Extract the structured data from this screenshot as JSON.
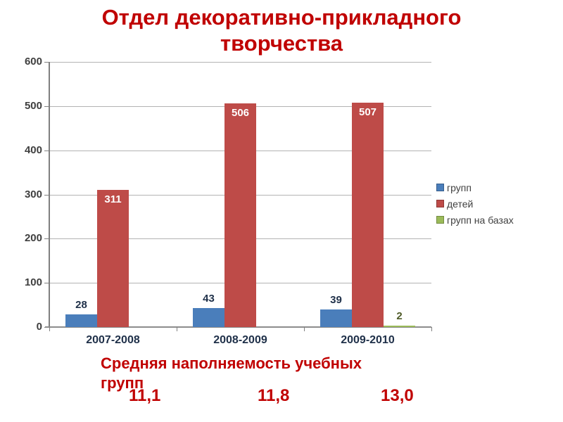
{
  "page": {
    "background": "#ffffff"
  },
  "title": {
    "line1": "Отдел декоративно-прикладного",
    "line2": "творчества",
    "color": "#C00000"
  },
  "chart_data": {
    "type": "bar",
    "categories": [
      "2007-2008",
      "2008-2009",
      "2009-2010"
    ],
    "series": [
      {
        "name": "групп",
        "color": "#4A7EBB",
        "values": [
          28,
          43,
          39
        ],
        "label_color": "#1F3049",
        "label_position": "above"
      },
      {
        "name": "детей",
        "color": "#BE4B48",
        "values": [
          311,
          506,
          507
        ],
        "label_color": "#FFFFFF",
        "label_position": "inside"
      },
      {
        "name": "групп на базах",
        "color": "#9BBB59",
        "values": [
          0,
          0,
          2
        ],
        "label_color": "#4F5B28",
        "label_position": "above"
      }
    ],
    "ylim": [
      0,
      600
    ],
    "ytick_step": 100,
    "grid": true,
    "legend_position": "right",
    "axis_color": "#808080",
    "gridline_color": "#b3b3b3",
    "tick_label_color": "#3f3f3f",
    "category_label_color": "#1F3049"
  },
  "legend": {
    "text_color": "#404040"
  },
  "caption": {
    "line1": "Средняя наполняемость учебных",
    "line2": "групп",
    "color": "#C00000"
  },
  "averages": {
    "values": [
      "11,1",
      "11,8",
      "13,0"
    ],
    "color": "#C00000"
  }
}
